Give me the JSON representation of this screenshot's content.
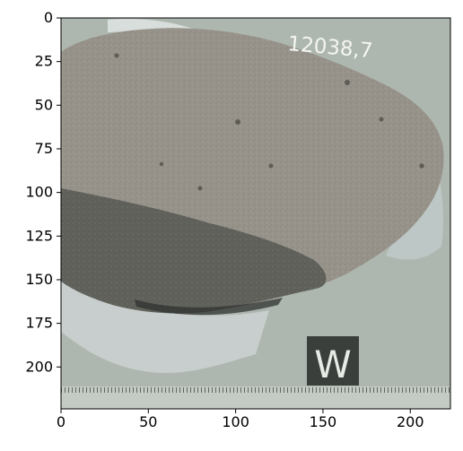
{
  "figure": {
    "x_ticks": [
      "0",
      "50",
      "100",
      "150",
      "200"
    ],
    "y_ticks": [
      "0",
      "25",
      "50",
      "75",
      "100",
      "125",
      "150",
      "175",
      "200"
    ],
    "x_range": [
      0,
      223
    ],
    "y_range": [
      0,
      224
    ]
  },
  "photo": {
    "sample_label": "12038,7",
    "cube_label": "W",
    "background_color": "#a9b2aa",
    "rock_color": "#97938a",
    "rock_dark_color": "#5b5d56",
    "foil_color": "#c9cfcf"
  }
}
